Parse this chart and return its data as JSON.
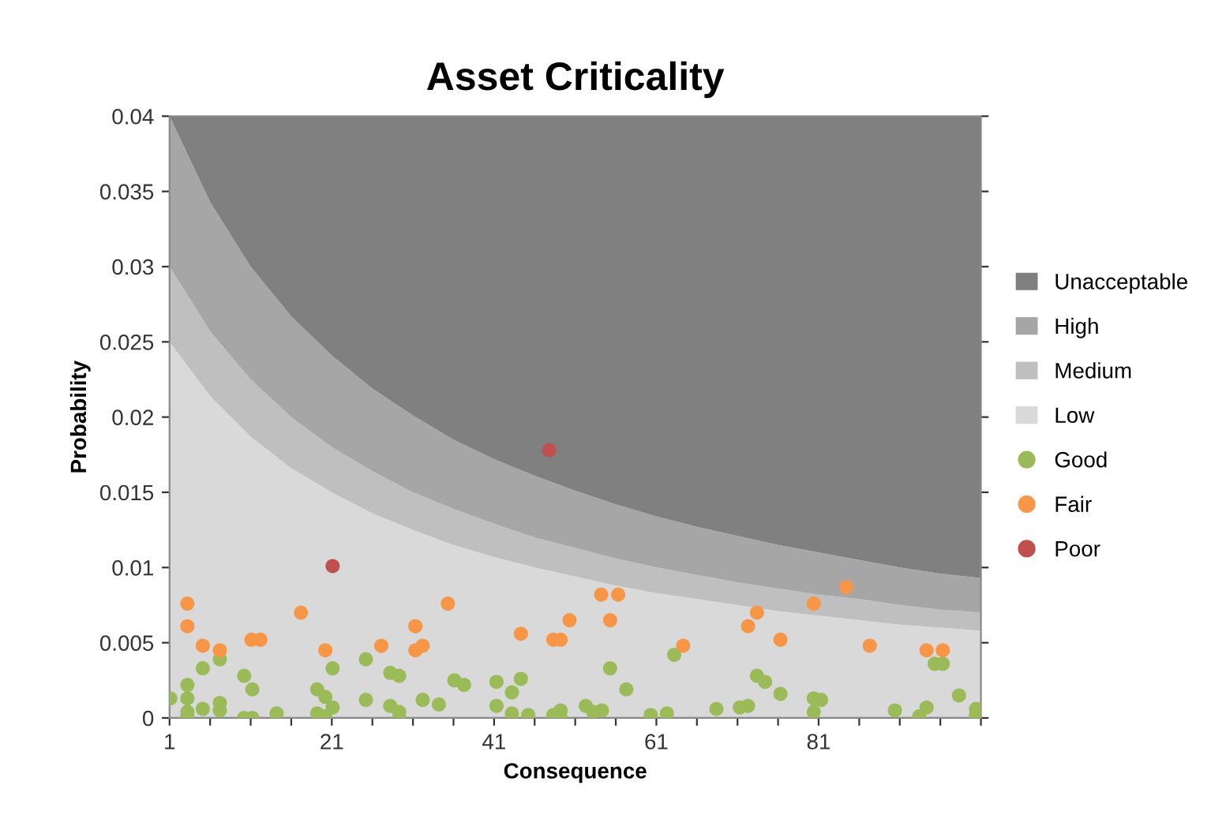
{
  "chart_data": {
    "type": "area",
    "title": "Asset Criticality",
    "xlabel": "Consequence",
    "ylabel": "Probability",
    "x": [
      1,
      6,
      11,
      16,
      21,
      26,
      31,
      36,
      41,
      46,
      51,
      56,
      61,
      66,
      71,
      76,
      81,
      86,
      91,
      96,
      101
    ],
    "stacked": true,
    "legend": "right",
    "grid": false,
    "xlim": [
      1,
      101
    ],
    "ylim": [
      0,
      0.04
    ],
    "xticks": [
      1,
      {
        "value": 6,
        "label": null
      },
      {
        "value": 11,
        "label": null
      },
      {
        "value": 16,
        "label": null
      },
      21,
      {
        "value": 26,
        "label": null
      },
      {
        "value": 31,
        "label": null
      },
      {
        "value": 36,
        "label": null
      },
      41,
      {
        "value": 46,
        "label": null
      },
      {
        "value": 51,
        "label": null
      },
      {
        "value": 56,
        "label": null
      },
      61,
      {
        "value": 66,
        "label": null
      },
      {
        "value": 71,
        "label": null
      },
      {
        "value": 76,
        "label": null
      },
      81,
      {
        "value": 86,
        "label": null
      },
      {
        "value": 91,
        "label": null
      },
      {
        "value": 96,
        "label": null
      },
      {
        "value": 101,
        "label": null
      }
    ],
    "yticks": [
      0,
      0.005,
      0.01,
      0.015,
      0.02,
      0.025,
      0.03,
      0.035,
      0.04
    ],
    "series": [
      {
        "name": "Low",
        "color": "#d9d9d9",
        "values": [
          0.025,
          0.0214,
          0.0187,
          0.0166,
          0.015,
          0.0136,
          0.0125,
          0.0115,
          0.0107,
          0.01,
          0.0094,
          0.0088,
          0.0083,
          0.0079,
          0.0075,
          0.0071,
          0.0068,
          0.0065,
          0.0062,
          0.006,
          0.0058
        ]
      },
      {
        "name": "Medium",
        "color": "#bfbfbf",
        "values": [
          0.005,
          0.0043,
          0.0038,
          0.0034,
          0.003,
          0.0028,
          0.0025,
          0.0024,
          0.0022,
          0.002,
          0.0019,
          0.0018,
          0.0017,
          0.0016,
          0.0015,
          0.0015,
          0.0014,
          0.0014,
          0.0013,
          0.0012,
          0.0012
        ]
      },
      {
        "name": "High",
        "color": "#a6a6a6",
        "values": [
          0.01,
          0.0086,
          0.0075,
          0.0067,
          0.0061,
          0.0055,
          0.0051,
          0.0046,
          0.0043,
          0.0041,
          0.0038,
          0.0036,
          0.0034,
          0.0032,
          0.0031,
          0.0029,
          0.0028,
          0.0026,
          0.0025,
          0.0024,
          0.0023
        ]
      },
      {
        "name": "Unacceptable",
        "color": "#808080",
        "values": [
          0.0,
          0.0057,
          0.01,
          0.0133,
          0.0159,
          0.0181,
          0.0199,
          0.0215,
          0.0228,
          0.0239,
          0.0249,
          0.0258,
          0.0266,
          0.0273,
          0.0279,
          0.0285,
          0.029,
          0.0295,
          0.03,
          0.0304,
          0.0307
        ]
      },
      {
        "name": "Good",
        "type": "scatter",
        "marker": "circle",
        "color": "#9bbb59",
        "x": [
          1.1,
          3.2,
          3.2,
          3.2,
          3.2,
          5.1,
          5.1,
          7.2,
          7.2,
          7.2,
          10.2,
          10.2,
          11.2,
          11.2,
          14.2,
          19.2,
          19.2,
          20.2,
          21.1,
          21.1,
          20.2,
          25.2,
          25.2,
          28.2,
          29.3,
          28.2,
          29.3,
          29.3,
          32.2,
          34.2,
          36.1,
          37.3,
          41.3,
          41.3,
          43.2,
          44.3,
          43.2,
          45.2,
          48.3,
          49.2,
          49.2,
          52.3,
          53.2,
          54.3,
          55.3,
          57.3,
          60.3,
          62.3,
          63.2,
          68.4,
          71.3,
          72.3,
          73.4,
          74.4,
          76.3,
          80.4,
          81.3,
          80.4,
          90.4,
          93.4,
          94.3,
          95.3,
          96.3,
          98.3,
          100.4,
          100.4
        ],
        "values": [
          0.0013,
          0.0022,
          0.0013,
          0.0004,
          0.0001,
          0.0033,
          0.0006,
          0.0039,
          0.001,
          0.0005,
          0.0028,
          0.0,
          0.0,
          0.0019,
          0.0003,
          0.0019,
          0.0003,
          0.0014,
          0.0033,
          0.0007,
          0.0001,
          0.0039,
          0.0012,
          0.003,
          0.0028,
          0.0008,
          0.0004,
          0.0,
          0.0012,
          0.0009,
          0.0025,
          0.0022,
          0.0024,
          0.0008,
          0.0017,
          0.0026,
          0.0003,
          0.0002,
          0.0002,
          0.0005,
          0.0,
          0.0008,
          0.0004,
          0.0005,
          0.0033,
          0.0019,
          0.0002,
          0.0003,
          0.0042,
          0.0006,
          0.0007,
          0.0008,
          0.0028,
          0.0024,
          0.0016,
          0.0013,
          0.0012,
          0.0004,
          0.0005,
          0.0001,
          0.0007,
          0.0036,
          0.0036,
          0.0015,
          0.0006,
          0.0002
        ]
      },
      {
        "name": "Fair",
        "type": "scatter",
        "marker": "circle",
        "color": "#f79646",
        "x": [
          3.2,
          3.2,
          5.1,
          7.2,
          11.1,
          12.2,
          17.2,
          20.2,
          27.1,
          31.3,
          31.3,
          32.2,
          35.3,
          44.3,
          48.3,
          49.2,
          50.3,
          54.2,
          56.3,
          55.3,
          64.3,
          72.3,
          73.4,
          76.3,
          80.4,
          84.4,
          87.3,
          94.3,
          96.3
        ],
        "values": [
          0.0076,
          0.0061,
          0.0048,
          0.0045,
          0.0052,
          0.0052,
          0.007,
          0.0045,
          0.0048,
          0.0061,
          0.0045,
          0.0048,
          0.0076,
          0.0056,
          0.0052,
          0.0052,
          0.0065,
          0.0082,
          0.0082,
          0.0065,
          0.0048,
          0.0061,
          0.007,
          0.0052,
          0.0076,
          0.0087,
          0.0048,
          0.0045,
          0.0045
        ]
      },
      {
        "name": "Poor",
        "type": "scatter",
        "marker": "circle",
        "color": "#c0504d",
        "x": [
          21.1,
          47.8
        ],
        "values": [
          0.0101,
          0.0178
        ]
      }
    ]
  }
}
